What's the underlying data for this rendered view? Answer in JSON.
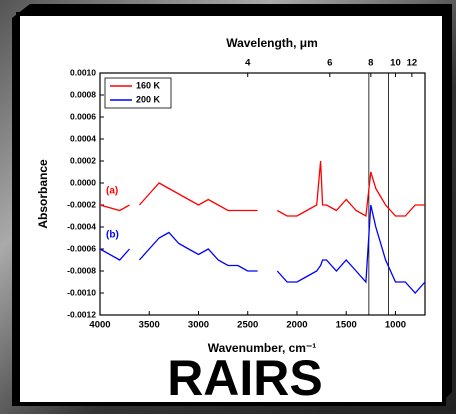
{
  "chart_data": {
    "type": "line",
    "xlabel": "Wavenumber, cm⁻¹",
    "x2label": "Wavelength, μm",
    "ylabel": "Absorbance",
    "caption": "RAIRS",
    "x": [
      4000,
      3800,
      3700,
      3650,
      3600,
      3500,
      3400,
      3300,
      3200,
      3100,
      3000,
      2900,
      2800,
      2700,
      2600,
      2500,
      2400,
      2300,
      2200,
      2100,
      2000,
      1900,
      1800,
      1760,
      1740,
      1700,
      1600,
      1500,
      1400,
      1300,
      1250,
      1200,
      1100,
      1000,
      900,
      800,
      700
    ],
    "series": [
      {
        "name": "160 K",
        "color": "#ff0000",
        "label": "(a)",
        "values": [
          -0.0002,
          -0.00025,
          -0.0002,
          null,
          -0.0002,
          -0.0001,
          0.0,
          -5e-05,
          -0.0001,
          -0.00015,
          -0.0002,
          -0.00015,
          -0.0002,
          -0.00025,
          -0.00025,
          -0.00025,
          -0.00025,
          null,
          -0.00025,
          -0.0003,
          -0.0003,
          -0.00025,
          -0.0002,
          0.0002,
          -0.0002,
          -0.0002,
          -0.00025,
          -0.00015,
          -0.00025,
          -0.0003,
          0.0001,
          -5e-05,
          -0.0002,
          -0.0003,
          -0.0003,
          -0.0002,
          -0.0002
        ]
      },
      {
        "name": "200 K",
        "color": "#0000ff",
        "label": "(b)",
        "values": [
          -0.0006,
          -0.0007,
          -0.0006,
          null,
          -0.0007,
          -0.0006,
          -0.0005,
          -0.00045,
          -0.00055,
          -0.0006,
          -0.00065,
          -0.0006,
          -0.0007,
          -0.00075,
          -0.00075,
          -0.0008,
          -0.0008,
          null,
          -0.0008,
          -0.0009,
          -0.0009,
          -0.00085,
          -0.0008,
          -0.00075,
          -0.0007,
          -0.0007,
          -0.0008,
          -0.0007,
          -0.0008,
          -0.0009,
          -0.0002,
          -0.0004,
          -0.0007,
          -0.0009,
          -0.0009,
          -0.001,
          -0.0009
        ]
      }
    ],
    "xlim": [
      4000,
      700
    ],
    "xticks": [
      4000,
      3500,
      3000,
      2500,
      2000,
      1500,
      1000
    ],
    "x2ticks": [
      4,
      6,
      8,
      10,
      12
    ],
    "vlines": [
      1270,
      1070
    ],
    "ylim": [
      -0.0012,
      0.001
    ],
    "yticks": [
      {
        "value": -0.0012,
        "label": "-0.0012"
      },
      {
        "value": -0.001,
        "label": "-0.0010"
      },
      {
        "value": -0.0008,
        "label": "-0.0008"
      },
      {
        "value": -0.0006,
        "label": "-0.0006"
      },
      {
        "value": -0.0004,
        "label": "-0.0004"
      },
      {
        "value": -0.0002,
        "label": "-0.0002"
      },
      {
        "value": 0,
        "label": "0.0000"
      },
      {
        "value": 0.0002,
        "label": "0.0002"
      },
      {
        "value": 0.0004,
        "label": "0.0004"
      },
      {
        "value": 0.0006,
        "label": "0.0006"
      },
      {
        "value": 0.0008,
        "label": "0.0008"
      },
      {
        "value": 0.001,
        "label": "0.0010"
      }
    ],
    "legend": "upper left"
  }
}
